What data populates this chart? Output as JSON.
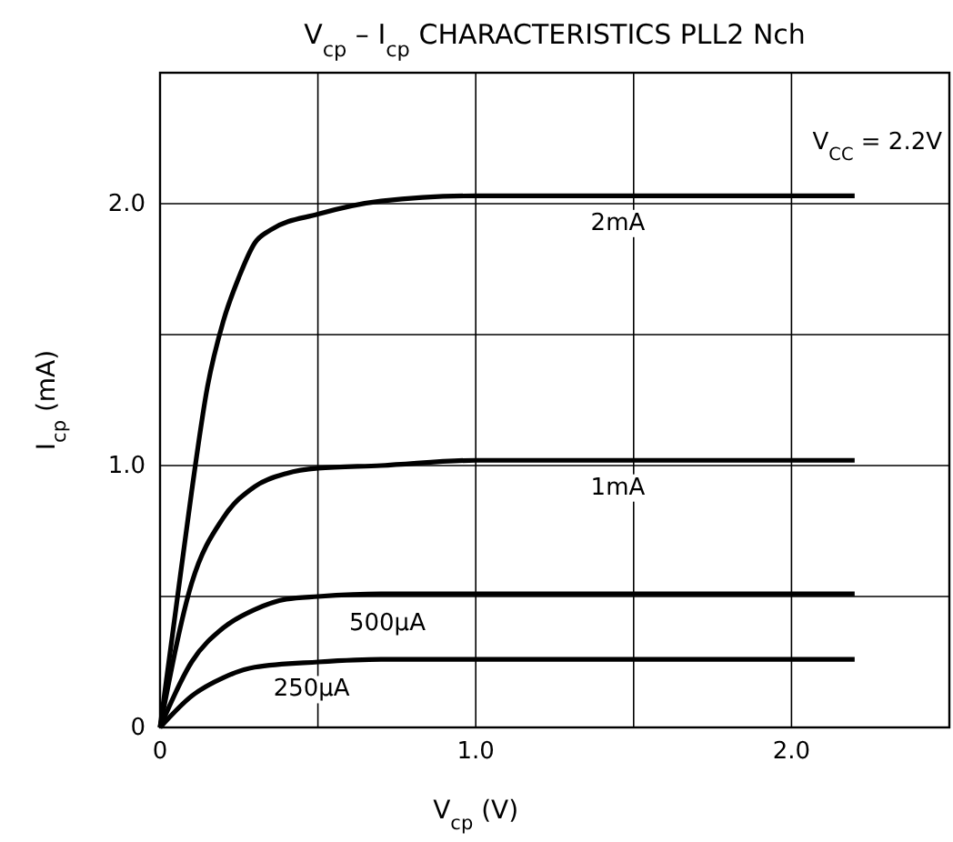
{
  "chart_data": {
    "type": "line",
    "title": "V$_{cp}$ – I$_{cp}$ CHARACTERISTICS    PLL2    Nch",
    "xlabel": "V$_{cp}$   (V)",
    "ylabel": "I$_{cp}$   (mA)",
    "annotations": [
      "V$_{CC}$ = 2.2V"
    ],
    "xlim": [
      0,
      2.5
    ],
    "ylim": [
      0,
      2.5
    ],
    "xticks": [
      0,
      {
        "value": 0.5,
        "label": null
      },
      {
        "value": 1,
        "label": "1.0"
      },
      {
        "value": 1.5,
        "label": null
      },
      {
        "value": 2,
        "label": "2.0"
      }
    ],
    "yticks": [
      0,
      {
        "value": 0.5,
        "label": null
      },
      {
        "value": 1,
        "label": "1.0"
      },
      {
        "value": 1.5,
        "label": null
      },
      {
        "value": 2,
        "label": "2.0"
      }
    ],
    "grid": true,
    "line_style": "solid",
    "marker": "none",
    "series": [
      {
        "name": "2mA",
        "color": "#000000",
        "x": [
          0,
          0.05,
          0.1,
          0.15,
          0.2,
          0.25,
          0.3,
          0.35,
          0.5,
          0.7,
          1.0,
          2.2
        ],
        "values": [
          0,
          0.45,
          0.9,
          1.3,
          1.55,
          1.72,
          1.85,
          1.9,
          1.96,
          2.01,
          2.03,
          2.03
        ]
      },
      {
        "name": "1mA",
        "color": "#000000",
        "x": [
          0,
          0.1,
          0.2,
          0.3,
          0.4,
          0.5,
          0.7,
          1.0,
          2.2
        ],
        "values": [
          0,
          0.55,
          0.8,
          0.92,
          0.97,
          0.99,
          1.0,
          1.02,
          1.02
        ]
      },
      {
        "name": "500μA",
        "color": "#000000",
        "x": [
          0,
          0.1,
          0.2,
          0.3,
          0.4,
          0.5,
          0.7,
          1.0,
          2.2
        ],
        "values": [
          0,
          0.25,
          0.38,
          0.45,
          0.49,
          0.5,
          0.51,
          0.51,
          0.51
        ]
      },
      {
        "name": "250μA",
        "color": "#000000",
        "x": [
          0,
          0.1,
          0.2,
          0.3,
          0.5,
          0.7,
          1.0,
          2.2
        ],
        "values": [
          0,
          0.12,
          0.19,
          0.23,
          0.25,
          0.26,
          0.26,
          0.26
        ]
      }
    ]
  }
}
